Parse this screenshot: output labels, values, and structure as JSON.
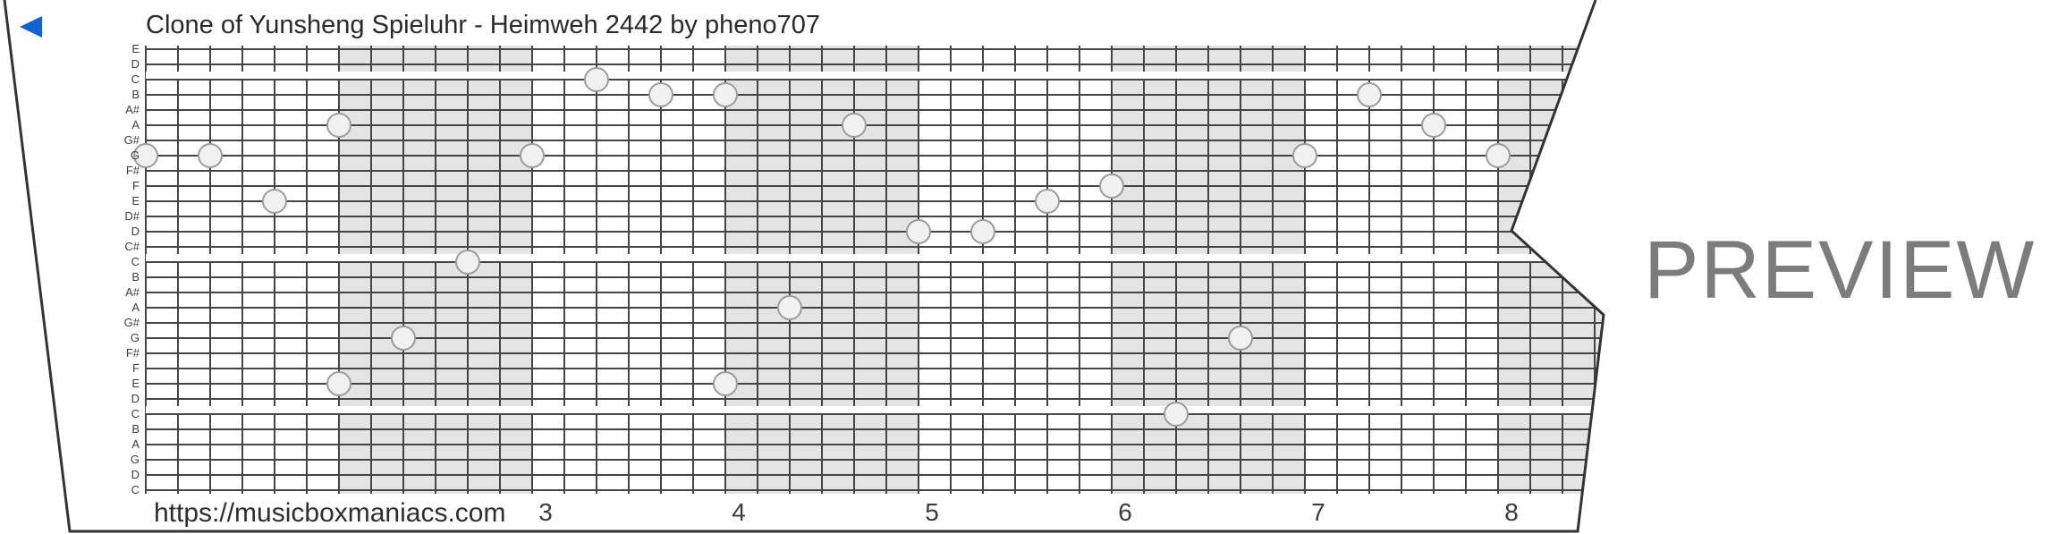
{
  "title": "Clone of Yunsheng Spieluhr - Heimweh 2442 by pheno707",
  "watermark": "PREVIEW",
  "back_icon_color": "#1262d3",
  "footer": {
    "url": "https://musicboxmaniacs.com",
    "beat_numbers": [
      "3",
      "4",
      "5",
      "6",
      "7",
      "8"
    ]
  },
  "strip": {
    "note_labels": [
      "E",
      "D",
      "C",
      "B",
      "A#",
      "A",
      "G#",
      "G",
      "F#",
      "F",
      "E",
      "D#",
      "D",
      "C#",
      "C",
      "B",
      "A#",
      "A",
      "G#",
      "G",
      "F#",
      "F",
      "E",
      "D",
      "C",
      "B",
      "A",
      "G",
      "D",
      "C"
    ],
    "octave_separator_rows": [
      2,
      14,
      24
    ],
    "gray_band_start_cols": [
      6,
      18,
      30,
      42
    ],
    "colors": {
      "band": "#e4e4e4",
      "grid_line": "#454545",
      "border": "#333333",
      "note_fill": "#f1f1f1",
      "note_stroke": "#9c9c9c",
      "text": "#2a2a2a",
      "label_text": "#3e3e3e",
      "number_text": "#3c3c3c",
      "watermark_gray": "#7c7c7c"
    }
  },
  "chart_data": {
    "type": "piano-roll",
    "description": "30-note music box strip; col = vertical grid line index (36px apart), row = note line index from top (17px apart)",
    "row_labels_top_to_bottom": [
      "E",
      "D",
      "C",
      "B",
      "A#",
      "A",
      "G#",
      "G",
      "F#",
      "F",
      "E",
      "D#",
      "D",
      "C#",
      "C",
      "B",
      "A#",
      "A",
      "G#",
      "G",
      "F#",
      "F",
      "E",
      "D",
      "C",
      "B",
      "A",
      "G",
      "D",
      "C"
    ],
    "beat_tick_labels": [
      "3",
      "4",
      "5",
      "6",
      "7",
      "8"
    ],
    "notes": [
      {
        "col": 0,
        "row": 7,
        "note": "G"
      },
      {
        "col": 2,
        "row": 7,
        "note": "G"
      },
      {
        "col": 4,
        "row": 10,
        "note": "E"
      },
      {
        "col": 6,
        "row": 5,
        "note": "A"
      },
      {
        "col": 6,
        "row": 22,
        "note": "E"
      },
      {
        "col": 8,
        "row": 19,
        "note": "G"
      },
      {
        "col": 10,
        "row": 14,
        "note": "C"
      },
      {
        "col": 12,
        "row": 7,
        "note": "G"
      },
      {
        "col": 14,
        "row": 2,
        "note": "C"
      },
      {
        "col": 16,
        "row": 3,
        "note": "B"
      },
      {
        "col": 18,
        "row": 3,
        "note": "B"
      },
      {
        "col": 18,
        "row": 22,
        "note": "E"
      },
      {
        "col": 20,
        "row": 17,
        "note": "A"
      },
      {
        "col": 22,
        "row": 5,
        "note": "A"
      },
      {
        "col": 24,
        "row": 12,
        "note": "D"
      },
      {
        "col": 26,
        "row": 12,
        "note": "D"
      },
      {
        "col": 28,
        "row": 10,
        "note": "E"
      },
      {
        "col": 30,
        "row": 9,
        "note": "F"
      },
      {
        "col": 32,
        "row": 24,
        "note": "C"
      },
      {
        "col": 34,
        "row": 19,
        "note": "G"
      },
      {
        "col": 36,
        "row": 7,
        "note": "G"
      },
      {
        "col": 38,
        "row": 3,
        "note": "B"
      },
      {
        "col": 40,
        "row": 5,
        "note": "A"
      },
      {
        "col": 42,
        "row": 7,
        "note": "G"
      }
    ]
  }
}
